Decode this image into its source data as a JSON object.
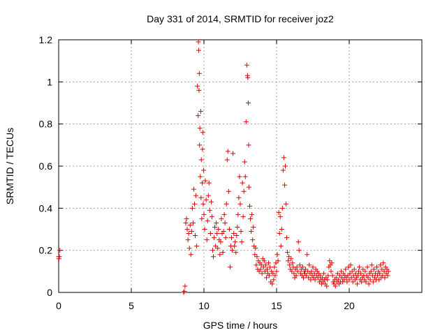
{
  "chart_data": {
    "type": "scatter",
    "title": "Day 331 of 2014, SRMTID for receiver joz2",
    "xlabel": "GPS time / hours",
    "ylabel": "SRMTID / TECUs",
    "xlim": [
      0,
      25
    ],
    "ylim": [
      0,
      1.2
    ],
    "x_ticks": [
      0,
      5,
      10,
      15,
      20
    ],
    "x_tick_labels": [
      "0",
      "5",
      "10",
      "15",
      "20"
    ],
    "y_ticks": [
      0,
      0.2,
      0.4,
      0.6,
      0.8,
      1.0,
      1.2
    ],
    "y_tick_labels": [
      "0",
      "0.2",
      "0.4",
      "0.6",
      "0.8",
      "1",
      "1.2"
    ],
    "grid": true,
    "marker": "plus",
    "color": "#e00000",
    "series": [
      {
        "name": "SRMTID",
        "points": [
          [
            0.0,
            0.17
          ],
          [
            0.02,
            0.16
          ],
          [
            0.05,
            0.17
          ],
          [
            0.08,
            0.2
          ],
          [
            8.6,
            0.0
          ],
          [
            8.65,
            0.005
          ],
          [
            8.7,
            0.03
          ],
          [
            8.75,
            0.33
          ],
          [
            8.8,
            0.35
          ],
          [
            8.85,
            0.3
          ],
          [
            8.9,
            0.25
          ],
          [
            8.95,
            0.28
          ],
          [
            9.0,
            0.21
          ],
          [
            9.05,
            0.32
          ],
          [
            9.1,
            0.18
          ],
          [
            9.15,
            0.29
          ],
          [
            9.2,
            0.4
          ],
          [
            9.25,
            0.33
          ],
          [
            9.3,
            0.49
          ],
          [
            9.35,
            0.42
          ],
          [
            9.4,
            0.27
          ],
          [
            9.45,
            0.46
          ],
          [
            9.5,
            0.22
          ],
          [
            9.55,
            0.98
          ],
          [
            9.6,
            0.84
          ],
          [
            9.62,
            1.19
          ],
          [
            9.64,
            1.15
          ],
          [
            9.66,
            0.96
          ],
          [
            9.68,
            1.04
          ],
          [
            9.7,
            0.7
          ],
          [
            9.72,
            0.78
          ],
          [
            9.75,
            0.55
          ],
          [
            9.78,
            0.86
          ],
          [
            9.8,
            0.45
          ],
          [
            9.82,
            0.63
          ],
          [
            9.85,
            0.35
          ],
          [
            9.88,
            0.52
          ],
          [
            9.9,
            0.68
          ],
          [
            9.92,
            0.76
          ],
          [
            9.95,
            0.42
          ],
          [
            9.98,
            0.58
          ],
          [
            10.0,
            0.37
          ],
          [
            10.05,
            0.3
          ],
          [
            10.1,
            0.53
          ],
          [
            10.15,
            0.44
          ],
          [
            10.2,
            0.25
          ],
          [
            10.25,
            0.34
          ],
          [
            10.3,
            0.46
          ],
          [
            10.35,
            0.52
          ],
          [
            10.4,
            0.39
          ],
          [
            10.45,
            0.28
          ],
          [
            10.5,
            0.43
          ],
          [
            10.55,
            0.36
          ],
          [
            10.6,
            0.2
          ],
          [
            10.65,
            0.17
          ],
          [
            10.7,
            0.26
          ],
          [
            10.75,
            0.31
          ],
          [
            10.8,
            0.22
          ],
          [
            10.85,
            0.33
          ],
          [
            10.9,
            0.28
          ],
          [
            10.95,
            0.21
          ],
          [
            11.0,
            0.3
          ],
          [
            11.05,
            0.25
          ],
          [
            11.1,
            0.18
          ],
          [
            11.15,
            0.24
          ],
          [
            11.2,
            0.35
          ],
          [
            11.25,
            0.28
          ],
          [
            11.3,
            0.19
          ],
          [
            11.35,
            0.29
          ],
          [
            11.4,
            0.37
          ],
          [
            11.45,
            0.33
          ],
          [
            11.5,
            0.26
          ],
          [
            11.55,
            0.42
          ],
          [
            11.6,
            0.63
          ],
          [
            11.65,
            0.67
          ],
          [
            11.7,
            0.48
          ],
          [
            11.75,
            0.3
          ],
          [
            11.8,
            0.12
          ],
          [
            11.85,
            0.22
          ],
          [
            11.9,
            0.26
          ],
          [
            11.95,
            0.2
          ],
          [
            12.0,
            0.66
          ],
          [
            12.05,
            0.28
          ],
          [
            12.1,
            0.22
          ],
          [
            12.15,
            0.24
          ],
          [
            12.2,
            0.19
          ],
          [
            12.25,
            0.27
          ],
          [
            12.3,
            0.31
          ],
          [
            12.35,
            0.37
          ],
          [
            12.4,
            0.45
          ],
          [
            12.45,
            0.55
          ],
          [
            12.5,
            0.42
          ],
          [
            12.55,
            0.29
          ],
          [
            12.6,
            0.24
          ],
          [
            12.65,
            0.52
          ],
          [
            12.7,
            0.36
          ],
          [
            12.75,
            0.48
          ],
          [
            12.8,
            0.62
          ],
          [
            12.85,
            0.55
          ],
          [
            12.9,
            0.81
          ],
          [
            12.95,
            1.08
          ],
          [
            13.0,
            1.03
          ],
          [
            13.02,
            1.02
          ],
          [
            13.05,
            0.9
          ],
          [
            13.08,
            0.7
          ],
          [
            13.1,
            0.5
          ],
          [
            13.15,
            0.41
          ],
          [
            13.2,
            0.35
          ],
          [
            13.25,
            0.29
          ],
          [
            13.3,
            0.37
          ],
          [
            13.35,
            0.25
          ],
          [
            13.4,
            0.31
          ],
          [
            13.45,
            0.22
          ],
          [
            13.5,
            0.18
          ],
          [
            13.55,
            0.21
          ],
          [
            13.6,
            0.13
          ],
          [
            13.65,
            0.17
          ],
          [
            13.7,
            0.11
          ],
          [
            13.75,
            0.15
          ],
          [
            13.8,
            0.1
          ],
          [
            13.85,
            0.14
          ],
          [
            13.9,
            0.11
          ],
          [
            13.95,
            0.13
          ],
          [
            14.0,
            0.09
          ],
          [
            14.05,
            0.16
          ],
          [
            14.1,
            0.12
          ],
          [
            14.15,
            0.15
          ],
          [
            14.2,
            0.1
          ],
          [
            14.25,
            0.13
          ],
          [
            14.3,
            0.07
          ],
          [
            14.35,
            0.11
          ],
          [
            14.4,
            0.09
          ],
          [
            14.45,
            0.14
          ],
          [
            14.5,
            0.08
          ],
          [
            14.55,
            0.12
          ],
          [
            14.6,
            0.05
          ],
          [
            14.65,
            0.1
          ],
          [
            14.7,
            0.04
          ],
          [
            14.75,
            0.09
          ],
          [
            14.8,
            0.06
          ],
          [
            14.85,
            0.12
          ],
          [
            14.9,
            0.08
          ],
          [
            14.95,
            0.14
          ],
          [
            15.0,
            0.1
          ],
          [
            15.05,
            0.18
          ],
          [
            15.1,
            0.15
          ],
          [
            15.15,
            0.38
          ],
          [
            15.2,
            0.28
          ],
          [
            15.25,
            0.36
          ],
          [
            15.3,
            0.22
          ],
          [
            15.35,
            0.3
          ],
          [
            15.4,
            0.4
          ],
          [
            15.45,
            0.58
          ],
          [
            15.5,
            0.64
          ],
          [
            15.55,
            0.51
          ],
          [
            15.6,
            0.6
          ],
          [
            15.65,
            0.42
          ],
          [
            15.7,
            0.26
          ],
          [
            15.75,
            0.19
          ],
          [
            15.8,
            0.15
          ],
          [
            15.85,
            0.17
          ],
          [
            15.9,
            0.13
          ],
          [
            15.95,
            0.11
          ],
          [
            16.0,
            0.16
          ],
          [
            16.05,
            0.1
          ],
          [
            16.1,
            0.14
          ],
          [
            16.15,
            0.12
          ],
          [
            16.2,
            0.09
          ],
          [
            16.25,
            0.07
          ],
          [
            16.3,
            0.11
          ],
          [
            16.35,
            0.08
          ],
          [
            16.4,
            0.12
          ],
          [
            16.45,
            0.1
          ],
          [
            16.5,
            0.24
          ],
          [
            16.55,
            0.2
          ],
          [
            16.6,
            0.13
          ],
          [
            16.65,
            0.09
          ],
          [
            16.7,
            0.11
          ],
          [
            16.75,
            0.08
          ],
          [
            16.8,
            0.12
          ],
          [
            16.85,
            0.07
          ],
          [
            16.9,
            0.1
          ],
          [
            16.95,
            0.09
          ],
          [
            17.0,
            0.11
          ],
          [
            17.05,
            0.08
          ],
          [
            17.1,
            0.18
          ],
          [
            17.15,
            0.1
          ],
          [
            17.2,
            0.07
          ],
          [
            17.25,
            0.13
          ],
          [
            17.3,
            0.09
          ],
          [
            17.35,
            0.06
          ],
          [
            17.4,
            0.1
          ],
          [
            17.45,
            0.08
          ],
          [
            17.5,
            0.12
          ],
          [
            17.55,
            0.07
          ],
          [
            17.6,
            0.09
          ],
          [
            17.65,
            0.06
          ],
          [
            17.7,
            0.11
          ],
          [
            17.75,
            0.08
          ],
          [
            17.8,
            0.1
          ],
          [
            17.85,
            0.07
          ],
          [
            17.9,
            0.09
          ],
          [
            17.95,
            0.05
          ],
          [
            18.0,
            0.08
          ],
          [
            18.05,
            0.06
          ],
          [
            18.1,
            0.04
          ],
          [
            18.15,
            0.07
          ],
          [
            18.2,
            0.05
          ],
          [
            18.25,
            0.09
          ],
          [
            18.3,
            0.06
          ],
          [
            18.35,
            0.04
          ],
          [
            18.4,
            0.07
          ],
          [
            18.45,
            0.03
          ],
          [
            18.5,
            0.06
          ],
          [
            18.55,
            0.08
          ],
          [
            18.6,
            0.12
          ],
          [
            18.65,
            0.15
          ],
          [
            18.7,
            0.13
          ],
          [
            18.75,
            0.1
          ],
          [
            18.8,
            0.14
          ],
          [
            18.85,
            0.08
          ],
          [
            18.9,
            0.05
          ],
          [
            18.95,
            0.04
          ],
          [
            19.0,
            0.06
          ],
          [
            19.05,
            0.03
          ],
          [
            19.1,
            0.07
          ],
          [
            19.15,
            0.05
          ],
          [
            19.2,
            0.09
          ],
          [
            19.25,
            0.06
          ],
          [
            19.3,
            0.04
          ],
          [
            19.35,
            0.08
          ],
          [
            19.4,
            0.05
          ],
          [
            19.45,
            0.1
          ],
          [
            19.5,
            0.07
          ],
          [
            19.55,
            0.05
          ],
          [
            19.6,
            0.09
          ],
          [
            19.65,
            0.06
          ],
          [
            19.7,
            0.08
          ],
          [
            19.75,
            0.11
          ],
          [
            19.8,
            0.07
          ],
          [
            19.85,
            0.05
          ],
          [
            19.9,
            0.08
          ],
          [
            19.95,
            0.12
          ],
          [
            20.0,
            0.06
          ],
          [
            20.05,
            0.09
          ],
          [
            20.1,
            0.13
          ],
          [
            20.15,
            0.07
          ],
          [
            20.2,
            0.1
          ],
          [
            20.25,
            0.05
          ],
          [
            20.3,
            0.08
          ],
          [
            20.35,
            0.11
          ],
          [
            20.4,
            0.06
          ],
          [
            20.45,
            0.09
          ],
          [
            20.5,
            0.07
          ],
          [
            20.55,
            0.04
          ],
          [
            20.6,
            0.08
          ],
          [
            20.65,
            0.1
          ],
          [
            20.7,
            0.12
          ],
          [
            20.75,
            0.06
          ],
          [
            20.8,
            0.09
          ],
          [
            20.85,
            0.05
          ],
          [
            20.9,
            0.07
          ],
          [
            20.95,
            0.11
          ],
          [
            21.0,
            0.08
          ],
          [
            21.05,
            0.06
          ],
          [
            21.1,
            0.1
          ],
          [
            21.15,
            0.05
          ],
          [
            21.2,
            0.08
          ],
          [
            21.25,
            0.12
          ],
          [
            21.3,
            0.07
          ],
          [
            21.35,
            0.04
          ],
          [
            21.4,
            0.09
          ],
          [
            21.45,
            0.06
          ],
          [
            21.5,
            0.1
          ],
          [
            21.55,
            0.13
          ],
          [
            21.6,
            0.08
          ],
          [
            21.65,
            0.05
          ],
          [
            21.7,
            0.11
          ],
          [
            21.75,
            0.07
          ],
          [
            21.8,
            0.09
          ],
          [
            21.85,
            0.06
          ],
          [
            21.9,
            0.12
          ],
          [
            21.95,
            0.08
          ],
          [
            22.0,
            0.1
          ],
          [
            22.05,
            0.06
          ],
          [
            22.1,
            0.09
          ],
          [
            22.15,
            0.13
          ],
          [
            22.2,
            0.07
          ],
          [
            22.25,
            0.11
          ],
          [
            22.3,
            0.08
          ],
          [
            22.35,
            0.14
          ],
          [
            22.4,
            0.1
          ],
          [
            22.45,
            0.07
          ],
          [
            22.5,
            0.12
          ],
          [
            22.55,
            0.09
          ],
          [
            22.6,
            0.11
          ],
          [
            22.65,
            0.08
          ],
          [
            22.7,
            0.1
          ]
        ]
      }
    ]
  }
}
